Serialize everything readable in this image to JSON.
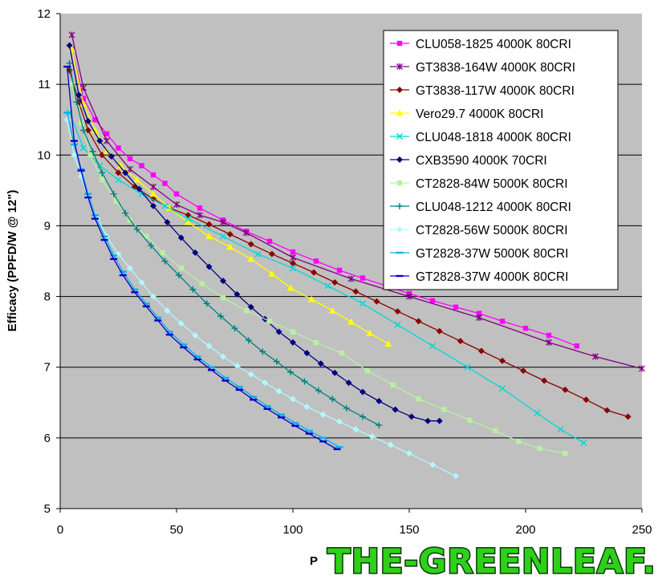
{
  "chart_data": {
    "type": "line",
    "title": "",
    "ylabel": "Efficacy (PPFD/W @ 12\")",
    "xlabel_visible": "P",
    "xlim": [
      0,
      250
    ],
    "ylim": [
      5,
      12
    ],
    "x_ticks": [
      "0",
      "50",
      "100",
      "150",
      "200",
      "250"
    ],
    "y_ticks": [
      "5",
      "6",
      "7",
      "8",
      "9",
      "10",
      "11",
      "12"
    ],
    "grid": "horizontal",
    "legend_position": "top-right",
    "series": [
      {
        "name": "CLU058-1825 4000K 80CRI",
        "color": "#ff00ff",
        "marker": "square",
        "x": [
          5,
          10,
          15,
          20,
          25,
          30,
          35,
          40,
          45,
          50,
          60,
          70,
          80,
          90,
          100,
          110,
          120,
          130,
          140,
          150,
          160,
          170,
          180,
          190,
          200,
          210,
          222
        ],
        "y": [
          11.5,
          10.8,
          10.5,
          10.3,
          10.1,
          9.95,
          9.85,
          9.72,
          9.6,
          9.45,
          9.25,
          9.08,
          8.92,
          8.78,
          8.63,
          8.5,
          8.37,
          8.26,
          8.15,
          8.04,
          7.94,
          7.85,
          7.76,
          7.65,
          7.55,
          7.45,
          7.3
        ]
      },
      {
        "name": "GT3838-164W 4000K 80CRI",
        "color": "#800080",
        "marker": "star",
        "x": [
          5,
          10,
          20,
          30,
          40,
          50,
          60,
          70,
          80,
          100,
          125,
          150,
          180,
          210,
          230,
          250
        ],
        "y": [
          11.7,
          10.95,
          10.2,
          9.8,
          9.55,
          9.3,
          9.15,
          9.05,
          8.9,
          8.55,
          8.25,
          8.0,
          7.7,
          7.35,
          7.15,
          6.98
        ]
      },
      {
        "name": "GT3838-117W 4000K 80CRI",
        "color": "#8b0000",
        "marker": "diamond",
        "x": [
          4,
          8,
          12,
          18,
          25,
          32,
          40,
          47,
          55,
          64,
          73,
          82,
          91,
          100,
          109,
          118,
          127,
          136,
          145,
          154,
          163,
          172,
          181,
          190,
          199,
          208,
          217,
          226,
          235,
          244
        ],
        "y": [
          11.2,
          10.75,
          10.35,
          10.0,
          9.75,
          9.55,
          9.38,
          9.25,
          9.15,
          9.02,
          8.88,
          8.74,
          8.6,
          8.47,
          8.34,
          8.2,
          8.07,
          7.93,
          7.79,
          7.65,
          7.51,
          7.37,
          7.23,
          7.09,
          6.95,
          6.81,
          6.68,
          6.54,
          6.39,
          6.3
        ]
      },
      {
        "name": "Vero29.7 4000K 80CRI",
        "color": "#ffff00",
        "marker": "triangle",
        "x": [
          5,
          10,
          15,
          20,
          26,
          33,
          40,
          47,
          55,
          64,
          73,
          82,
          91,
          99,
          108,
          117,
          125,
          133,
          141
        ],
        "y": [
          11.5,
          10.72,
          10.35,
          10.05,
          9.85,
          9.65,
          9.45,
          9.25,
          9.05,
          8.85,
          8.7,
          8.53,
          8.32,
          8.12,
          7.96,
          7.8,
          7.64,
          7.48,
          7.33
        ]
      },
      {
        "name": "CLU048-1818 4000K 80CRI",
        "color": "#00d8d8",
        "marker": "x",
        "x": [
          4,
          10,
          17,
          25,
          35,
          45,
          55,
          70,
          85,
          100,
          115,
          130,
          145,
          160,
          175,
          190,
          205,
          215,
          225
        ],
        "y": [
          10.6,
          10.1,
          9.85,
          9.65,
          9.45,
          9.28,
          9.1,
          8.85,
          8.6,
          8.4,
          8.15,
          7.9,
          7.6,
          7.3,
          7.0,
          6.7,
          6.35,
          6.12,
          5.93
        ]
      },
      {
        "name": "CXB3590 4000K 70CRI",
        "color": "#000080",
        "marker": "diamond",
        "x": [
          4,
          8,
          12,
          17,
          22,
          28,
          34,
          40,
          46,
          52,
          58,
          64,
          70,
          76,
          82,
          88,
          94,
          100,
          106,
          112,
          118,
          124,
          130,
          137,
          144,
          151,
          158,
          163
        ],
        "y": [
          11.55,
          10.85,
          10.48,
          10.2,
          9.98,
          9.75,
          9.52,
          9.28,
          9.05,
          8.83,
          8.62,
          8.42,
          8.22,
          8.03,
          7.85,
          7.68,
          7.5,
          7.35,
          7.2,
          7.05,
          6.92,
          6.78,
          6.65,
          6.52,
          6.4,
          6.3,
          6.24,
          6.24
        ]
      },
      {
        "name": "CT2828-84W 5000K 80CRI",
        "color": "#b8f0a0",
        "marker": "square",
        "x": [
          5,
          9,
          13,
          18,
          24,
          30,
          37,
          44,
          52,
          61,
          70,
          80,
          90,
          100,
          110,
          121,
          132,
          143,
          154,
          165,
          176,
          187,
          197,
          206,
          217
        ],
        "y": [
          11.0,
          10.45,
          10.0,
          9.65,
          9.35,
          9.08,
          8.85,
          8.62,
          8.4,
          8.18,
          7.98,
          7.8,
          7.65,
          7.5,
          7.35,
          7.2,
          6.95,
          6.75,
          6.55,
          6.4,
          6.25,
          6.1,
          5.95,
          5.85,
          5.78
        ]
      },
      {
        "name": "CLU048-1212 4000K 80CRI",
        "color": "#008080",
        "marker": "plus",
        "x": [
          4,
          7,
          10,
          14,
          18,
          23,
          28,
          33,
          39,
          45,
          51,
          57,
          63,
          69,
          75,
          81,
          87,
          93,
          99,
          105,
          111,
          117,
          123,
          130,
          137
        ],
        "y": [
          11.3,
          10.75,
          10.35,
          10.05,
          9.75,
          9.45,
          9.18,
          8.95,
          8.72,
          8.5,
          8.3,
          8.1,
          7.9,
          7.72,
          7.55,
          7.38,
          7.22,
          7.08,
          6.93,
          6.8,
          6.67,
          6.55,
          6.42,
          6.3,
          6.18
        ]
      },
      {
        "name": "CT2828-56W 5000K 80CRI",
        "color": "#b0f8ff",
        "marker": "diamond",
        "x": [
          3,
          6,
          9,
          12,
          16,
          20,
          25,
          30,
          35,
          40,
          46,
          52,
          58,
          64,
          70,
          76,
          82,
          88,
          94,
          100,
          106,
          113,
          120,
          127,
          134,
          142,
          150,
          160,
          170
        ],
        "y": [
          10.5,
          10.0,
          9.7,
          9.4,
          9.1,
          8.85,
          8.6,
          8.4,
          8.2,
          8.0,
          7.8,
          7.62,
          7.45,
          7.3,
          7.15,
          7.02,
          6.9,
          6.78,
          6.66,
          6.55,
          6.44,
          6.33,
          6.23,
          6.12,
          6.02,
          5.9,
          5.78,
          5.62,
          5.46
        ]
      },
      {
        "name": "GT2828-37W 5000K 80CRI",
        "color": "#00b0f0",
        "marker": "dash",
        "x": [
          3,
          6,
          9,
          12,
          15,
          19,
          23,
          27,
          32,
          37,
          42,
          47,
          53,
          59,
          65,
          71,
          77,
          83,
          89,
          95,
          101,
          107,
          113,
          120
        ],
        "y": [
          10.6,
          10.15,
          9.8,
          9.45,
          9.15,
          8.85,
          8.58,
          8.35,
          8.1,
          7.9,
          7.7,
          7.5,
          7.32,
          7.15,
          7.0,
          6.85,
          6.72,
          6.58,
          6.45,
          6.33,
          6.21,
          6.1,
          6.0,
          5.87
        ]
      },
      {
        "name": "GT2828-37W 4000K 80CRI",
        "color": "#0000cd",
        "marker": "dash",
        "x": [
          3,
          6,
          9,
          12,
          15,
          19,
          23,
          27,
          32,
          37,
          42,
          47,
          53,
          59,
          65,
          71,
          77,
          83,
          89,
          95,
          101,
          107,
          113,
          119
        ],
        "y": [
          11.25,
          10.2,
          9.78,
          9.4,
          9.1,
          8.8,
          8.53,
          8.3,
          8.06,
          7.86,
          7.66,
          7.46,
          7.28,
          7.11,
          6.96,
          6.81,
          6.68,
          6.54,
          6.41,
          6.29,
          6.17,
          6.06,
          5.95,
          5.84
        ]
      }
    ]
  },
  "watermark": {
    "text": "THE-GREENLEAF.IN"
  }
}
